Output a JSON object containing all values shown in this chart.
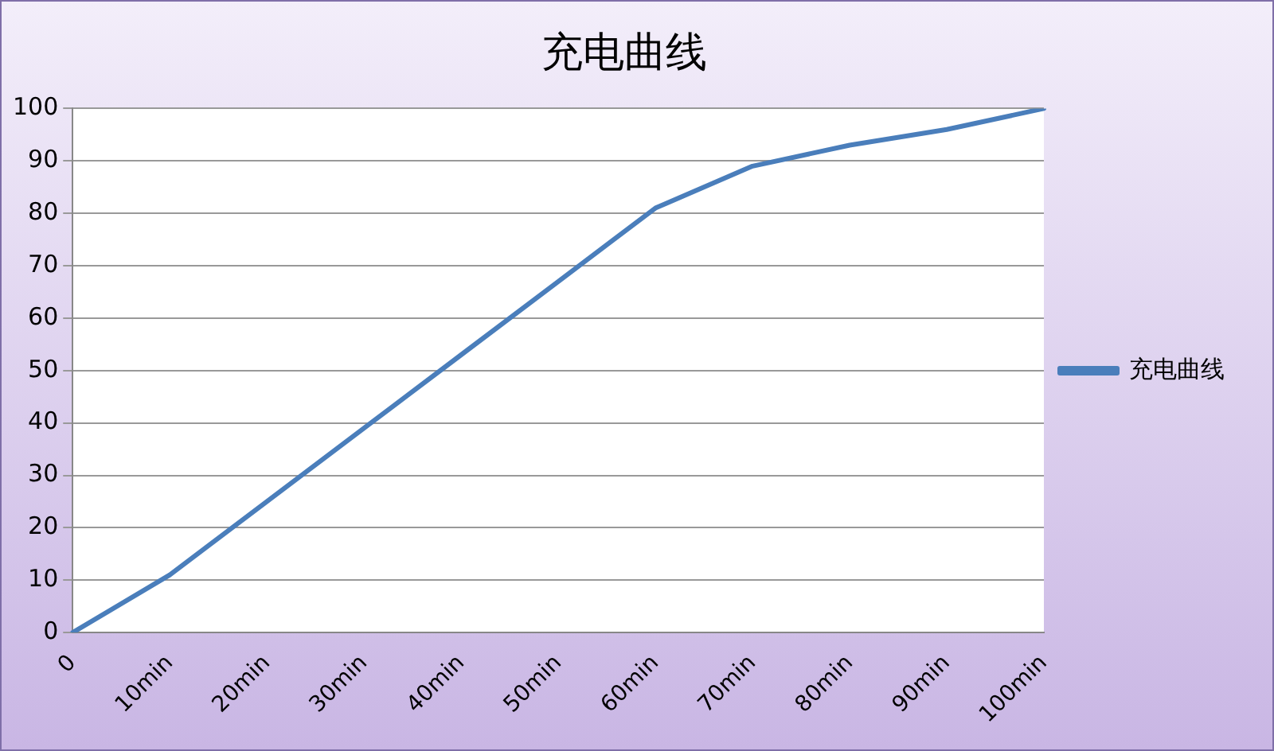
{
  "chart_data": {
    "type": "line",
    "title": "充电曲线",
    "categories": [
      "0",
      "10min",
      "20min",
      "30min",
      "40min",
      "50min",
      "60min",
      "70min",
      "80min",
      "90min",
      "100min"
    ],
    "series": [
      {
        "name": "充电曲线",
        "color": "#4a7ebb",
        "values": [
          0,
          11,
          25,
          39,
          53,
          67,
          81,
          89,
          93,
          96,
          100
        ]
      }
    ],
    "ylim": [
      0,
      100
    ],
    "yticks": [
      0,
      10,
      20,
      30,
      40,
      50,
      60,
      70,
      80,
      90,
      100
    ],
    "grid": "y",
    "legend": "right",
    "marker": "none",
    "line_style": "solid"
  }
}
